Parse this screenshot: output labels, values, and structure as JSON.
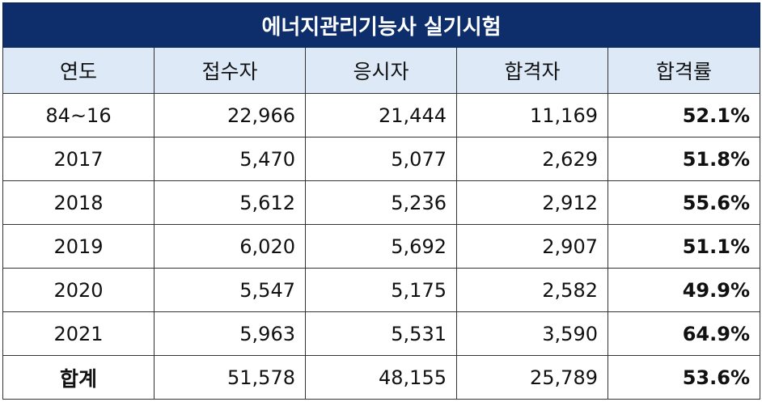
{
  "title": "에너지관리기능사 실기시험",
  "headers": [
    "연도",
    "접수자",
    "응시자",
    "합격자",
    "합격률"
  ],
  "rows": [
    {
      "year": "84~16",
      "applicants": "22,966",
      "examinees": "21,444",
      "passed": "11,169",
      "rate": "52.1%"
    },
    {
      "year": "2017",
      "applicants": "5,470",
      "examinees": "5,077",
      "passed": "2,629",
      "rate": "51.8%"
    },
    {
      "year": "2018",
      "applicants": "5,612",
      "examinees": "5,236",
      "passed": "2,912",
      "rate": "55.6%"
    },
    {
      "year": "2019",
      "applicants": "6,020",
      "examinees": "5,692",
      "passed": "2,907",
      "rate": "51.1%"
    },
    {
      "year": "2020",
      "applicants": "5,547",
      "examinees": "5,175",
      "passed": "2,582",
      "rate": "49.9%"
    },
    {
      "year": "2021",
      "applicants": "5,963",
      "examinees": "5,531",
      "passed": "3,590",
      "rate": "64.9%"
    }
  ],
  "total": {
    "year": "합계",
    "applicants": "51,578",
    "examinees": "48,155",
    "passed": "25,789",
    "rate": "53.6%"
  },
  "colors": {
    "title_bg": "#0d2d6b",
    "header_bg": "#dde9f7"
  }
}
